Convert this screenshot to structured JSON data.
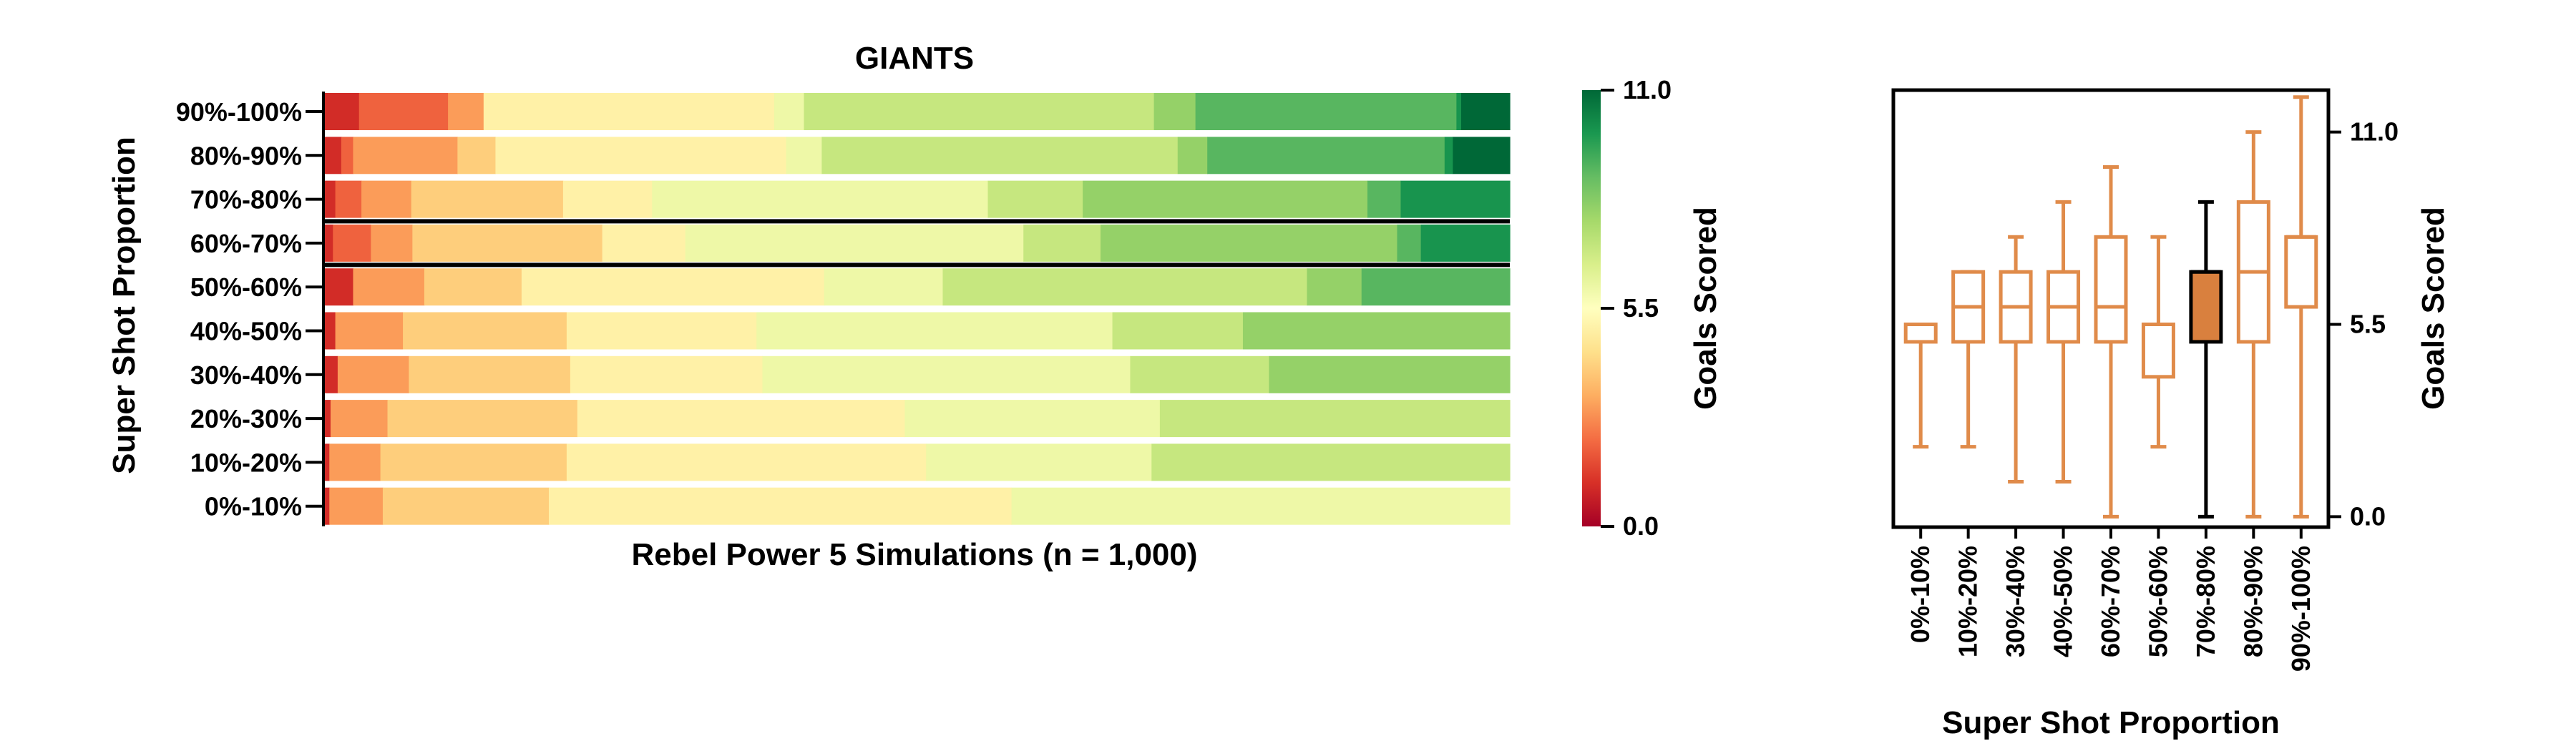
{
  "chart_data": [
    {
      "type": "stacked-bar-heatmap",
      "title": "GIANTS",
      "xlabel": "Rebel Power 5 Simulations (n = 1,000)",
      "ylabel": "Super Shot Proportion",
      "colorbar_label": "Goals Scored",
      "colorbar_ticks": [
        "0.0",
        "5.5",
        "11.0"
      ],
      "colorbar_range": [
        0,
        11
      ],
      "colormap": "RdYlGn",
      "n_simulations": 1000,
      "highlighted_row": "60%-70%",
      "rows": [
        {
          "label": "90%-100%",
          "segments": [
            {
              "goals": 1,
              "count": 30
            },
            {
              "goals": 2,
              "count": 75
            },
            {
              "goals": 3,
              "count": 30
            },
            {
              "goals": 5,
              "count": 245
            },
            {
              "goals": 6,
              "count": 25
            },
            {
              "goals": 7,
              "count": 295
            },
            {
              "goals": 8,
              "count": 35
            },
            {
              "goals": 9,
              "count": 220
            },
            {
              "goals": 10,
              "count": 4
            },
            {
              "goals": 11,
              "count": 41
            }
          ]
        },
        {
          "label": "80%-90%",
          "segments": [
            {
              "goals": 1,
              "count": 15
            },
            {
              "goals": 2,
              "count": 10
            },
            {
              "goals": 3,
              "count": 88
            },
            {
              "goals": 4,
              "count": 32
            },
            {
              "goals": 5,
              "count": 245
            },
            {
              "goals": 6,
              "count": 30
            },
            {
              "goals": 7,
              "count": 300
            },
            {
              "goals": 8,
              "count": 25
            },
            {
              "goals": 9,
              "count": 200
            },
            {
              "goals": 10,
              "count": 7
            },
            {
              "goals": 11,
              "count": 48
            }
          ]
        },
        {
          "label": "70%-80%",
          "segments": [
            {
              "goals": 1,
              "count": 10
            },
            {
              "goals": 2,
              "count": 22
            },
            {
              "goals": 3,
              "count": 42
            },
            {
              "goals": 4,
              "count": 128
            },
            {
              "goals": 5,
              "count": 75
            },
            {
              "goals": 6,
              "count": 283
            },
            {
              "goals": 7,
              "count": 80
            },
            {
              "goals": 8,
              "count": 240
            },
            {
              "goals": 9,
              "count": 28
            },
            {
              "goals": 10,
              "count": 92
            }
          ]
        },
        {
          "label": "60%-70%",
          "segments": [
            {
              "goals": 1,
              "count": 8
            },
            {
              "goals": 2,
              "count": 32
            },
            {
              "goals": 3,
              "count": 35
            },
            {
              "goals": 4,
              "count": 160
            },
            {
              "goals": 5,
              "count": 70
            },
            {
              "goals": 6,
              "count": 285
            },
            {
              "goals": 7,
              "count": 65
            },
            {
              "goals": 8,
              "count": 250
            },
            {
              "goals": 9,
              "count": 20
            },
            {
              "goals": 10,
              "count": 75
            }
          ]
        },
        {
          "label": "50%-60%",
          "segments": [
            {
              "goals": 1,
              "count": 25
            },
            {
              "goals": 3,
              "count": 60
            },
            {
              "goals": 4,
              "count": 82
            },
            {
              "goals": 5,
              "count": 255
            },
            {
              "goals": 6,
              "count": 100
            },
            {
              "goals": 7,
              "count": 307
            },
            {
              "goals": 8,
              "count": 46
            },
            {
              "goals": 9,
              "count": 125
            }
          ]
        },
        {
          "label": "40%-50%",
          "segments": [
            {
              "goals": 1,
              "count": 10
            },
            {
              "goals": 3,
              "count": 57
            },
            {
              "goals": 4,
              "count": 138
            },
            {
              "goals": 5,
              "count": 160
            },
            {
              "goals": 6,
              "count": 300
            },
            {
              "goals": 7,
              "count": 110
            },
            {
              "goals": 8,
              "count": 225
            }
          ]
        },
        {
          "label": "30%-40%",
          "segments": [
            {
              "goals": 1,
              "count": 12
            },
            {
              "goals": 3,
              "count": 60
            },
            {
              "goals": 4,
              "count": 136
            },
            {
              "goals": 5,
              "count": 162
            },
            {
              "goals": 6,
              "count": 310
            },
            {
              "goals": 7,
              "count": 117
            },
            {
              "goals": 8,
              "count": 203
            }
          ]
        },
        {
          "label": "20%-30%",
          "segments": [
            {
              "goals": 1,
              "count": 6
            },
            {
              "goals": 3,
              "count": 48
            },
            {
              "goals": 4,
              "count": 160
            },
            {
              "goals": 5,
              "count": 276
            },
            {
              "goals": 6,
              "count": 215
            },
            {
              "goals": 7,
              "count": 295
            }
          ]
        },
        {
          "label": "10%-20%",
          "segments": [
            {
              "goals": 1,
              "count": 5
            },
            {
              "goals": 3,
              "count": 43
            },
            {
              "goals": 4,
              "count": 157
            },
            {
              "goals": 5,
              "count": 303
            },
            {
              "goals": 6,
              "count": 190
            },
            {
              "goals": 7,
              "count": 302
            }
          ]
        },
        {
          "label": "0%-10%",
          "segments": [
            {
              "goals": 1,
              "count": 5
            },
            {
              "goals": 3,
              "count": 45
            },
            {
              "goals": 4,
              "count": 140
            },
            {
              "goals": 5,
              "count": 390
            },
            {
              "goals": 6,
              "count": 420
            }
          ]
        }
      ]
    },
    {
      "type": "box",
      "xlabel": "Super Shot Proportion",
      "ylabel": "Goals Scored",
      "yticks": [
        "0.0",
        "5.5",
        "11.0"
      ],
      "ylim": [
        -0.3,
        12.2
      ],
      "box_color": "#e08b4a",
      "highlight_color": "#d9803e",
      "boxes": [
        {
          "label": "0%-10%",
          "whisker_low": 2,
          "q1": 5,
          "median": 5.5,
          "q3": 5.5,
          "whisker_high": 5.5
        },
        {
          "label": "10%-20%",
          "whisker_low": 2,
          "q1": 5,
          "median": 6,
          "q3": 7,
          "whisker_high": 7
        },
        {
          "label": "30%-40%",
          "whisker_low": 1,
          "q1": 5,
          "median": 6,
          "q3": 7,
          "whisker_high": 8
        },
        {
          "label": "40%-50%",
          "whisker_low": 1,
          "q1": 5,
          "median": 6,
          "q3": 7,
          "whisker_high": 9
        },
        {
          "label": "60%-70%",
          "whisker_low": 0,
          "q1": 5,
          "median": 6,
          "q3": 8,
          "whisker_high": 10
        },
        {
          "label": "50%-60%",
          "whisker_low": 2,
          "q1": 4,
          "median": 5.5,
          "q3": 5.5,
          "whisker_high": 8
        },
        {
          "label": "70%-80%",
          "whisker_low": 0,
          "q1": 5,
          "median": 7,
          "q3": 7,
          "whisker_high": 9,
          "highlight": true
        },
        {
          "label": "80%-90%",
          "whisker_low": 0,
          "q1": 5,
          "median": 7,
          "q3": 9,
          "whisker_high": 11
        },
        {
          "label": "90%-100%",
          "whisker_low": 0,
          "q1": 6,
          "median": 8,
          "q3": 8,
          "whisker_high": 12
        }
      ]
    }
  ]
}
